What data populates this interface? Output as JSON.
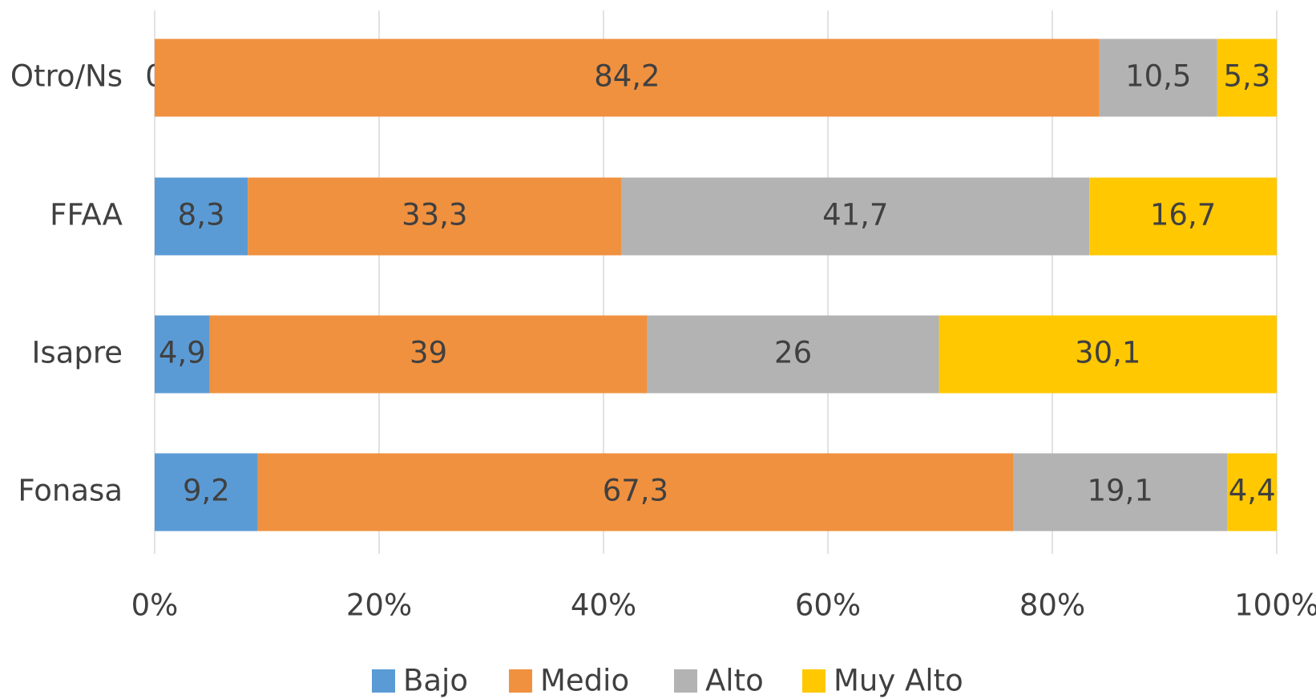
{
  "chart_data": {
    "type": "stacked-bar-horizontal",
    "categories": [
      "Otro/Ns",
      "FFAA",
      "Isapre",
      "Fonasa"
    ],
    "series": [
      {
        "name": "Bajo",
        "color": "#5b9bd5",
        "values": [
          0,
          8.3,
          4.9,
          9.2
        ],
        "value_labels": [
          "0",
          "8,3",
          "4,9",
          "9,2"
        ]
      },
      {
        "name": "Medio",
        "color": "#f0913f",
        "values": [
          84.2,
          33.3,
          39,
          67.3
        ],
        "value_labels": [
          "84,2",
          "33,3",
          "39",
          "67,3"
        ]
      },
      {
        "name": "Alto",
        "color": "#b3b3b3",
        "values": [
          10.5,
          41.7,
          26,
          19.1
        ],
        "value_labels": [
          "10,5",
          "41,7",
          "26",
          "19,1"
        ]
      },
      {
        "name": "Muy Alto",
        "color": "#ffc800",
        "values": [
          5.3,
          16.7,
          30.1,
          4.4
        ],
        "value_labels": [
          "5,3",
          "16,7",
          "30,1",
          "4,4"
        ]
      }
    ],
    "xlim": [
      0,
      100
    ],
    "xticks": [
      {
        "value": 0,
        "label": "0%"
      },
      {
        "value": 20,
        "label": "20%"
      },
      {
        "value": 40,
        "label": "40%"
      },
      {
        "value": 60,
        "label": "60%"
      },
      {
        "value": 80,
        "label": "80%"
      },
      {
        "value": 100,
        "label": "100%"
      }
    ],
    "grid": true,
    "legend": "bottom"
  }
}
